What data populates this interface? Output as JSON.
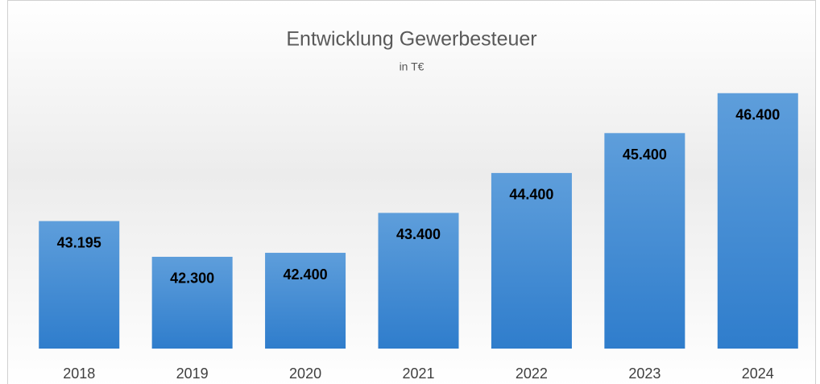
{
  "chart_data": {
    "type": "bar",
    "title": "Entwicklung Gewerbesteuer",
    "subtitle": "in T€",
    "categories": [
      "2018",
      "2019",
      "2020",
      "2021",
      "2022",
      "2023",
      "2024"
    ],
    "values": [
      43195,
      42300,
      42400,
      43400,
      44400,
      45400,
      46400
    ],
    "value_labels": [
      "43.195",
      "42.300",
      "42.400",
      "43.400",
      "44.400",
      "45.400",
      "46.400"
    ],
    "color": "#4a8fd6",
    "ylim": [
      40000,
      47000
    ],
    "grid": false
  }
}
